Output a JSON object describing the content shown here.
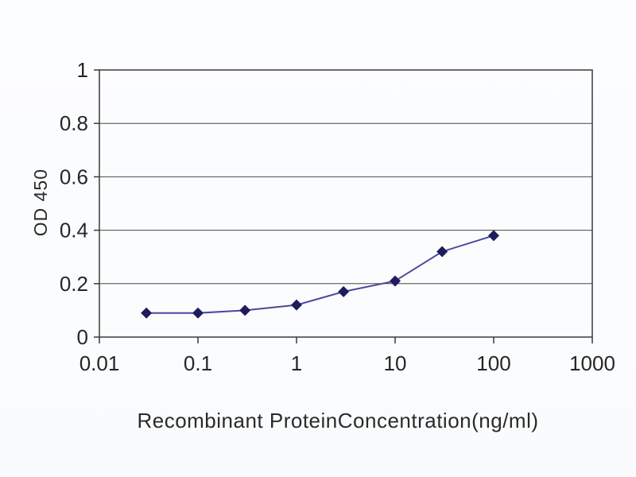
{
  "chart_data": {
    "type": "line",
    "title": "",
    "xlabel": "Recombinant ProteinConcentration(ng/ml)",
    "ylabel": "OD 450",
    "x_scale": "log",
    "xlim": [
      0.01,
      1000
    ],
    "ylim": [
      0,
      1
    ],
    "x_ticks": [
      0.01,
      0.1,
      1,
      10,
      100,
      1000
    ],
    "x_tick_labels": [
      "0.01",
      "0.1",
      "1",
      "10",
      "100",
      "1000"
    ],
    "y_ticks": [
      0,
      0.2,
      0.4,
      0.6,
      0.8,
      1
    ],
    "y_tick_labels": [
      "0",
      "0.2",
      "0.4",
      "0.6",
      "0.8",
      "1"
    ],
    "grid": "horizontal",
    "legend": "none",
    "series": [
      {
        "name": "OD 450",
        "marker": "diamond",
        "color": "#4a4a9e",
        "marker_color": "#1d1d5c",
        "x": [
          0.03,
          0.1,
          0.3,
          1,
          3,
          10,
          30,
          100
        ],
        "values": [
          0.09,
          0.09,
          0.1,
          0.12,
          0.17,
          0.21,
          0.32,
          0.38
        ]
      }
    ]
  },
  "colors": {
    "grid": "#474747",
    "axis": "#3a3a3a",
    "text": "#262626",
    "background": "#fbfcfe"
  }
}
